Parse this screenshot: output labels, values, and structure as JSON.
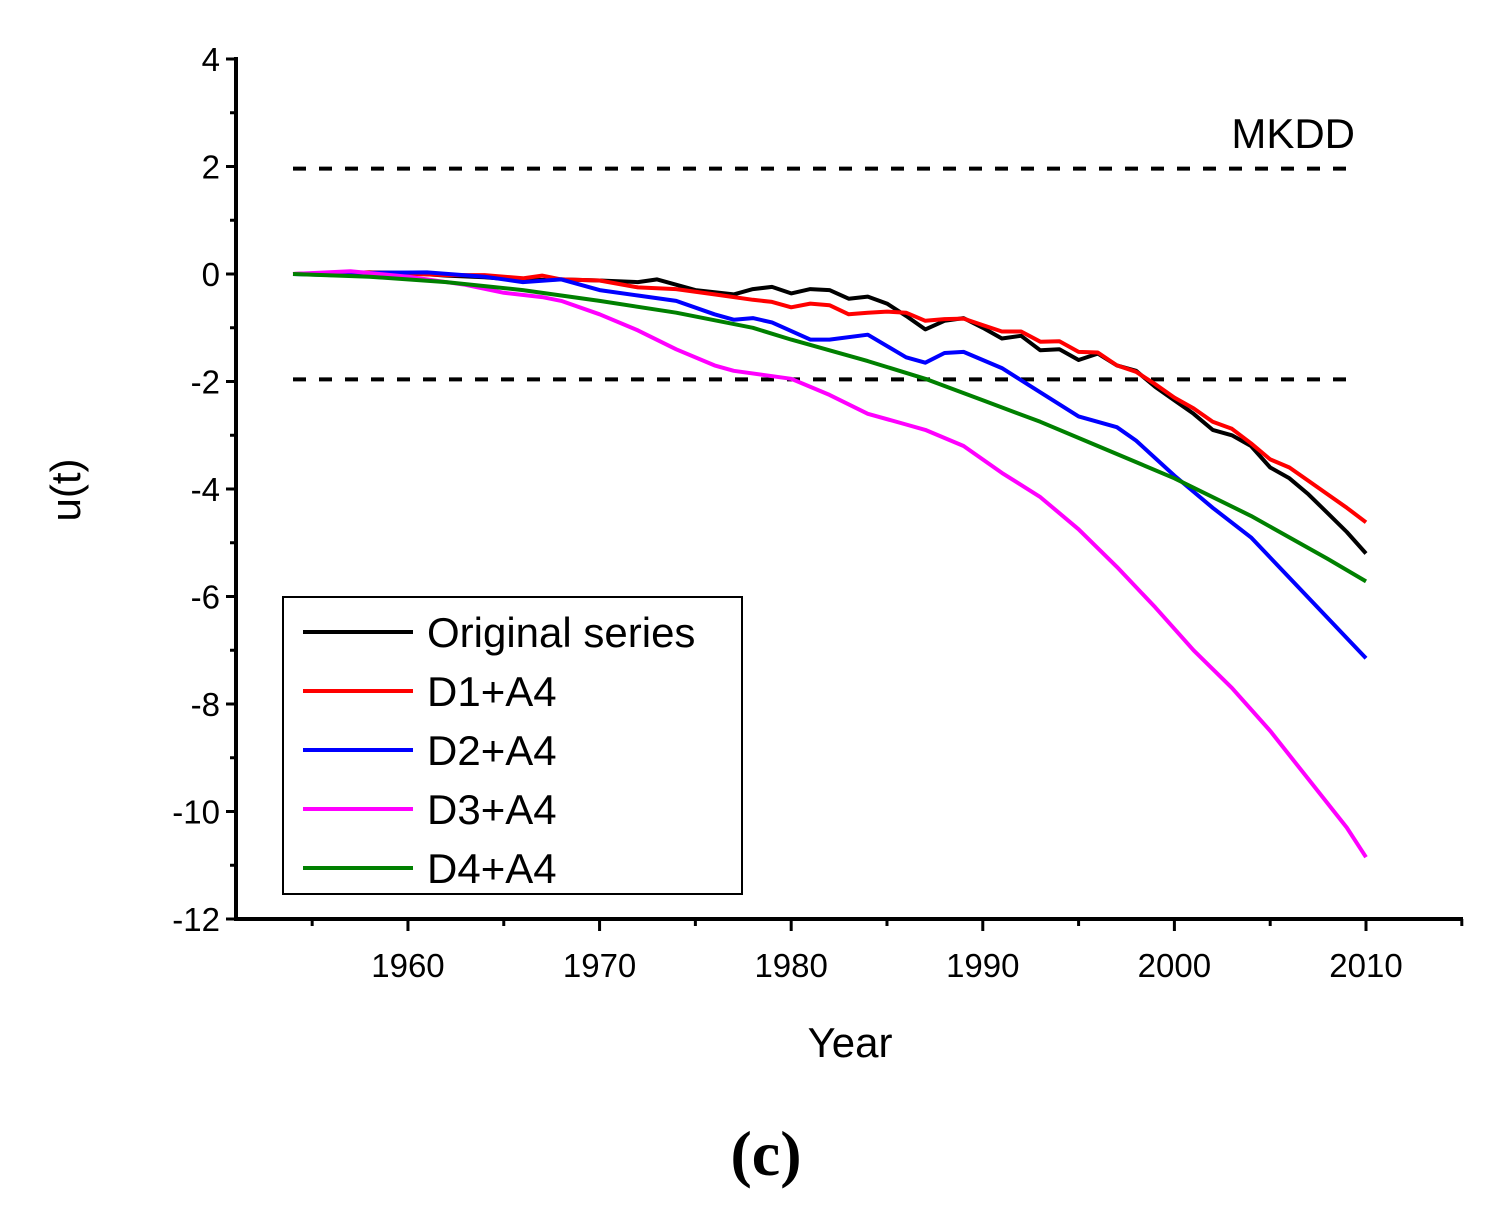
{
  "chart_data": {
    "type": "line",
    "title": "",
    "panel_label": "(c)",
    "xlabel": "Year",
    "ylabel": "u(t)",
    "xlim": [
      1951,
      2015
    ],
    "ylim": [
      -12,
      4
    ],
    "x_ticks": [
      1960,
      1970,
      1980,
      1990,
      2000,
      2010
    ],
    "x_tick_labels": [
      "1960",
      "1970",
      "1980",
      "1990",
      "2000",
      "2010"
    ],
    "y_ticks": [
      4,
      2,
      0,
      -2,
      -4,
      -6,
      -8,
      -10,
      -12
    ],
    "y_tick_labels": [
      "4",
      "2",
      "0",
      "-2",
      "-4",
      "-6",
      "-8",
      "-10",
      "-12"
    ],
    "grid": false,
    "legend_position": "bottom-left",
    "annotation": "MKDD",
    "reference_lines": [
      1.96,
      -1.96
    ],
    "series": [
      {
        "name": "Original series",
        "color": "#000000",
        "x": [
          1954,
          1956,
          1958,
          1960,
          1962,
          1964,
          1966,
          1968,
          1970,
          1972,
          1973,
          1975,
          1977,
          1978,
          1979,
          1980,
          1981,
          1982,
          1983,
          1984,
          1985,
          1986,
          1987,
          1988,
          1989,
          1990,
          1991,
          1992,
          1993,
          1994,
          1995,
          1996,
          1997,
          1998,
          1999,
          2000,
          2001,
          2002,
          2003,
          2004,
          2005,
          2006,
          2007,
          2008,
          2009,
          2010
        ],
        "y": [
          0,
          0.02,
          0.03,
          0.02,
          -0.03,
          -0.06,
          -0.12,
          -0.1,
          -0.12,
          -0.15,
          -0.1,
          -0.3,
          -0.38,
          -0.28,
          -0.24,
          -0.36,
          -0.28,
          -0.3,
          -0.46,
          -0.42,
          -0.55,
          -0.78,
          -1.03,
          -0.87,
          -0.82,
          -1.0,
          -1.2,
          -1.15,
          -1.42,
          -1.4,
          -1.6,
          -1.48,
          -1.7,
          -1.8,
          -2.1,
          -2.35,
          -2.6,
          -2.9,
          -3.0,
          -3.2,
          -3.6,
          -3.8,
          -4.1,
          -4.45,
          -4.8,
          -5.2
        ]
      },
      {
        "name": "D1+A4",
        "color": "#ff0000",
        "x": [
          1954,
          1958,
          1962,
          1964,
          1966,
          1967,
          1968,
          1970,
          1972,
          1974,
          1976,
          1978,
          1979,
          1980,
          1981,
          1982,
          1983,
          1984,
          1985,
          1986,
          1987,
          1988,
          1989,
          1990,
          1991,
          1992,
          1993,
          1994,
          1995,
          1996,
          1997,
          1998,
          1999,
          2000,
          2001,
          2002,
          2003,
          2004,
          2005,
          2006,
          2007,
          2008,
          2009,
          2010
        ],
        "y": [
          0,
          0.03,
          -0.02,
          -0.02,
          -0.08,
          -0.03,
          -0.1,
          -0.12,
          -0.25,
          -0.28,
          -0.38,
          -0.48,
          -0.52,
          -0.62,
          -0.55,
          -0.58,
          -0.75,
          -0.72,
          -0.7,
          -0.72,
          -0.87,
          -0.84,
          -0.83,
          -0.95,
          -1.07,
          -1.07,
          -1.26,
          -1.25,
          -1.45,
          -1.46,
          -1.7,
          -1.82,
          -2.05,
          -2.3,
          -2.5,
          -2.75,
          -2.88,
          -3.15,
          -3.45,
          -3.6,
          -3.85,
          -4.1,
          -4.35,
          -4.62
        ]
      },
      {
        "name": "D2+A4",
        "color": "#0000ff",
        "x": [
          1954,
          1956,
          1958,
          1961,
          1964,
          1966,
          1968,
          1970,
          1972,
          1974,
          1976,
          1977,
          1978,
          1979,
          1981,
          1982,
          1984,
          1986,
          1987,
          1988,
          1989,
          1991,
          1993,
          1995,
          1997,
          1998,
          2000,
          2002,
          2004,
          2006,
          2008,
          2010
        ],
        "y": [
          0,
          -0.02,
          0.02,
          0.03,
          -0.05,
          -0.15,
          -0.1,
          -0.3,
          -0.4,
          -0.5,
          -0.75,
          -0.85,
          -0.82,
          -0.9,
          -1.22,
          -1.22,
          -1.13,
          -1.55,
          -1.65,
          -1.47,
          -1.45,
          -1.75,
          -2.2,
          -2.65,
          -2.85,
          -3.1,
          -3.75,
          -4.35,
          -4.9,
          -5.65,
          -6.4,
          -7.15
        ]
      },
      {
        "name": "D3+A4",
        "color": "#ff00ff",
        "x": [
          1954,
          1957,
          1960,
          1963,
          1965,
          1967,
          1968,
          1970,
          1972,
          1974,
          1976,
          1977,
          1980,
          1982,
          1984,
          1986,
          1987,
          1989,
          1991,
          1993,
          1995,
          1997,
          1999,
          2001,
          2003,
          2005,
          2007,
          2009,
          2010
        ],
        "y": [
          0,
          0.05,
          -0.05,
          -0.2,
          -0.35,
          -0.43,
          -0.5,
          -0.75,
          -1.05,
          -1.4,
          -1.7,
          -1.8,
          -1.95,
          -2.25,
          -2.6,
          -2.8,
          -2.9,
          -3.2,
          -3.7,
          -4.15,
          -4.75,
          -5.45,
          -6.2,
          -7.0,
          -7.7,
          -8.5,
          -9.4,
          -10.3,
          -10.85
        ]
      },
      {
        "name": "D4+A4",
        "color": "#008000",
        "x": [
          1954,
          1958,
          1962,
          1966,
          1970,
          1974,
          1978,
          1980,
          1984,
          1987,
          1990,
          1993,
          1996,
          2000,
          2004,
          2008,
          2010
        ],
        "y": [
          0,
          -0.05,
          -0.15,
          -0.3,
          -0.5,
          -0.72,
          -1.0,
          -1.22,
          -1.62,
          -1.95,
          -2.35,
          -2.75,
          -3.2,
          -3.8,
          -4.5,
          -5.3,
          -5.72
        ]
      }
    ]
  }
}
